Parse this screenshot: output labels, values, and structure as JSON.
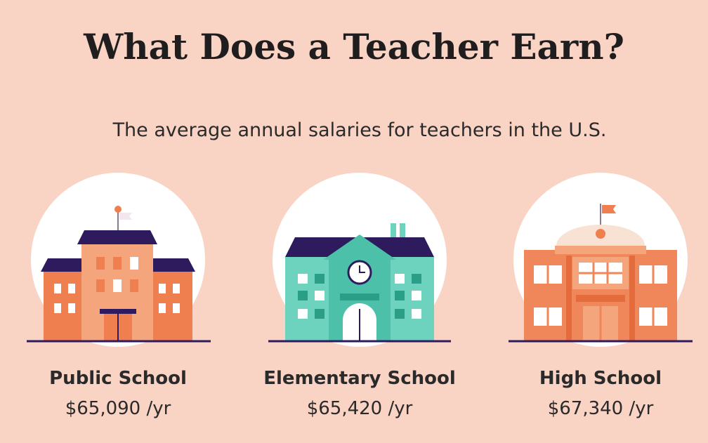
{
  "header": {
    "title": "What Does a Teacher Earn?",
    "subtitle": "The average annual salaries for teachers in the U.S."
  },
  "items": [
    {
      "label": "Public School",
      "salary": "$65,090 /yr"
    },
    {
      "label": "Elementary School",
      "salary": "$65,420 /yr"
    },
    {
      "label": "High School",
      "salary": "$67,340 /yr"
    }
  ]
}
